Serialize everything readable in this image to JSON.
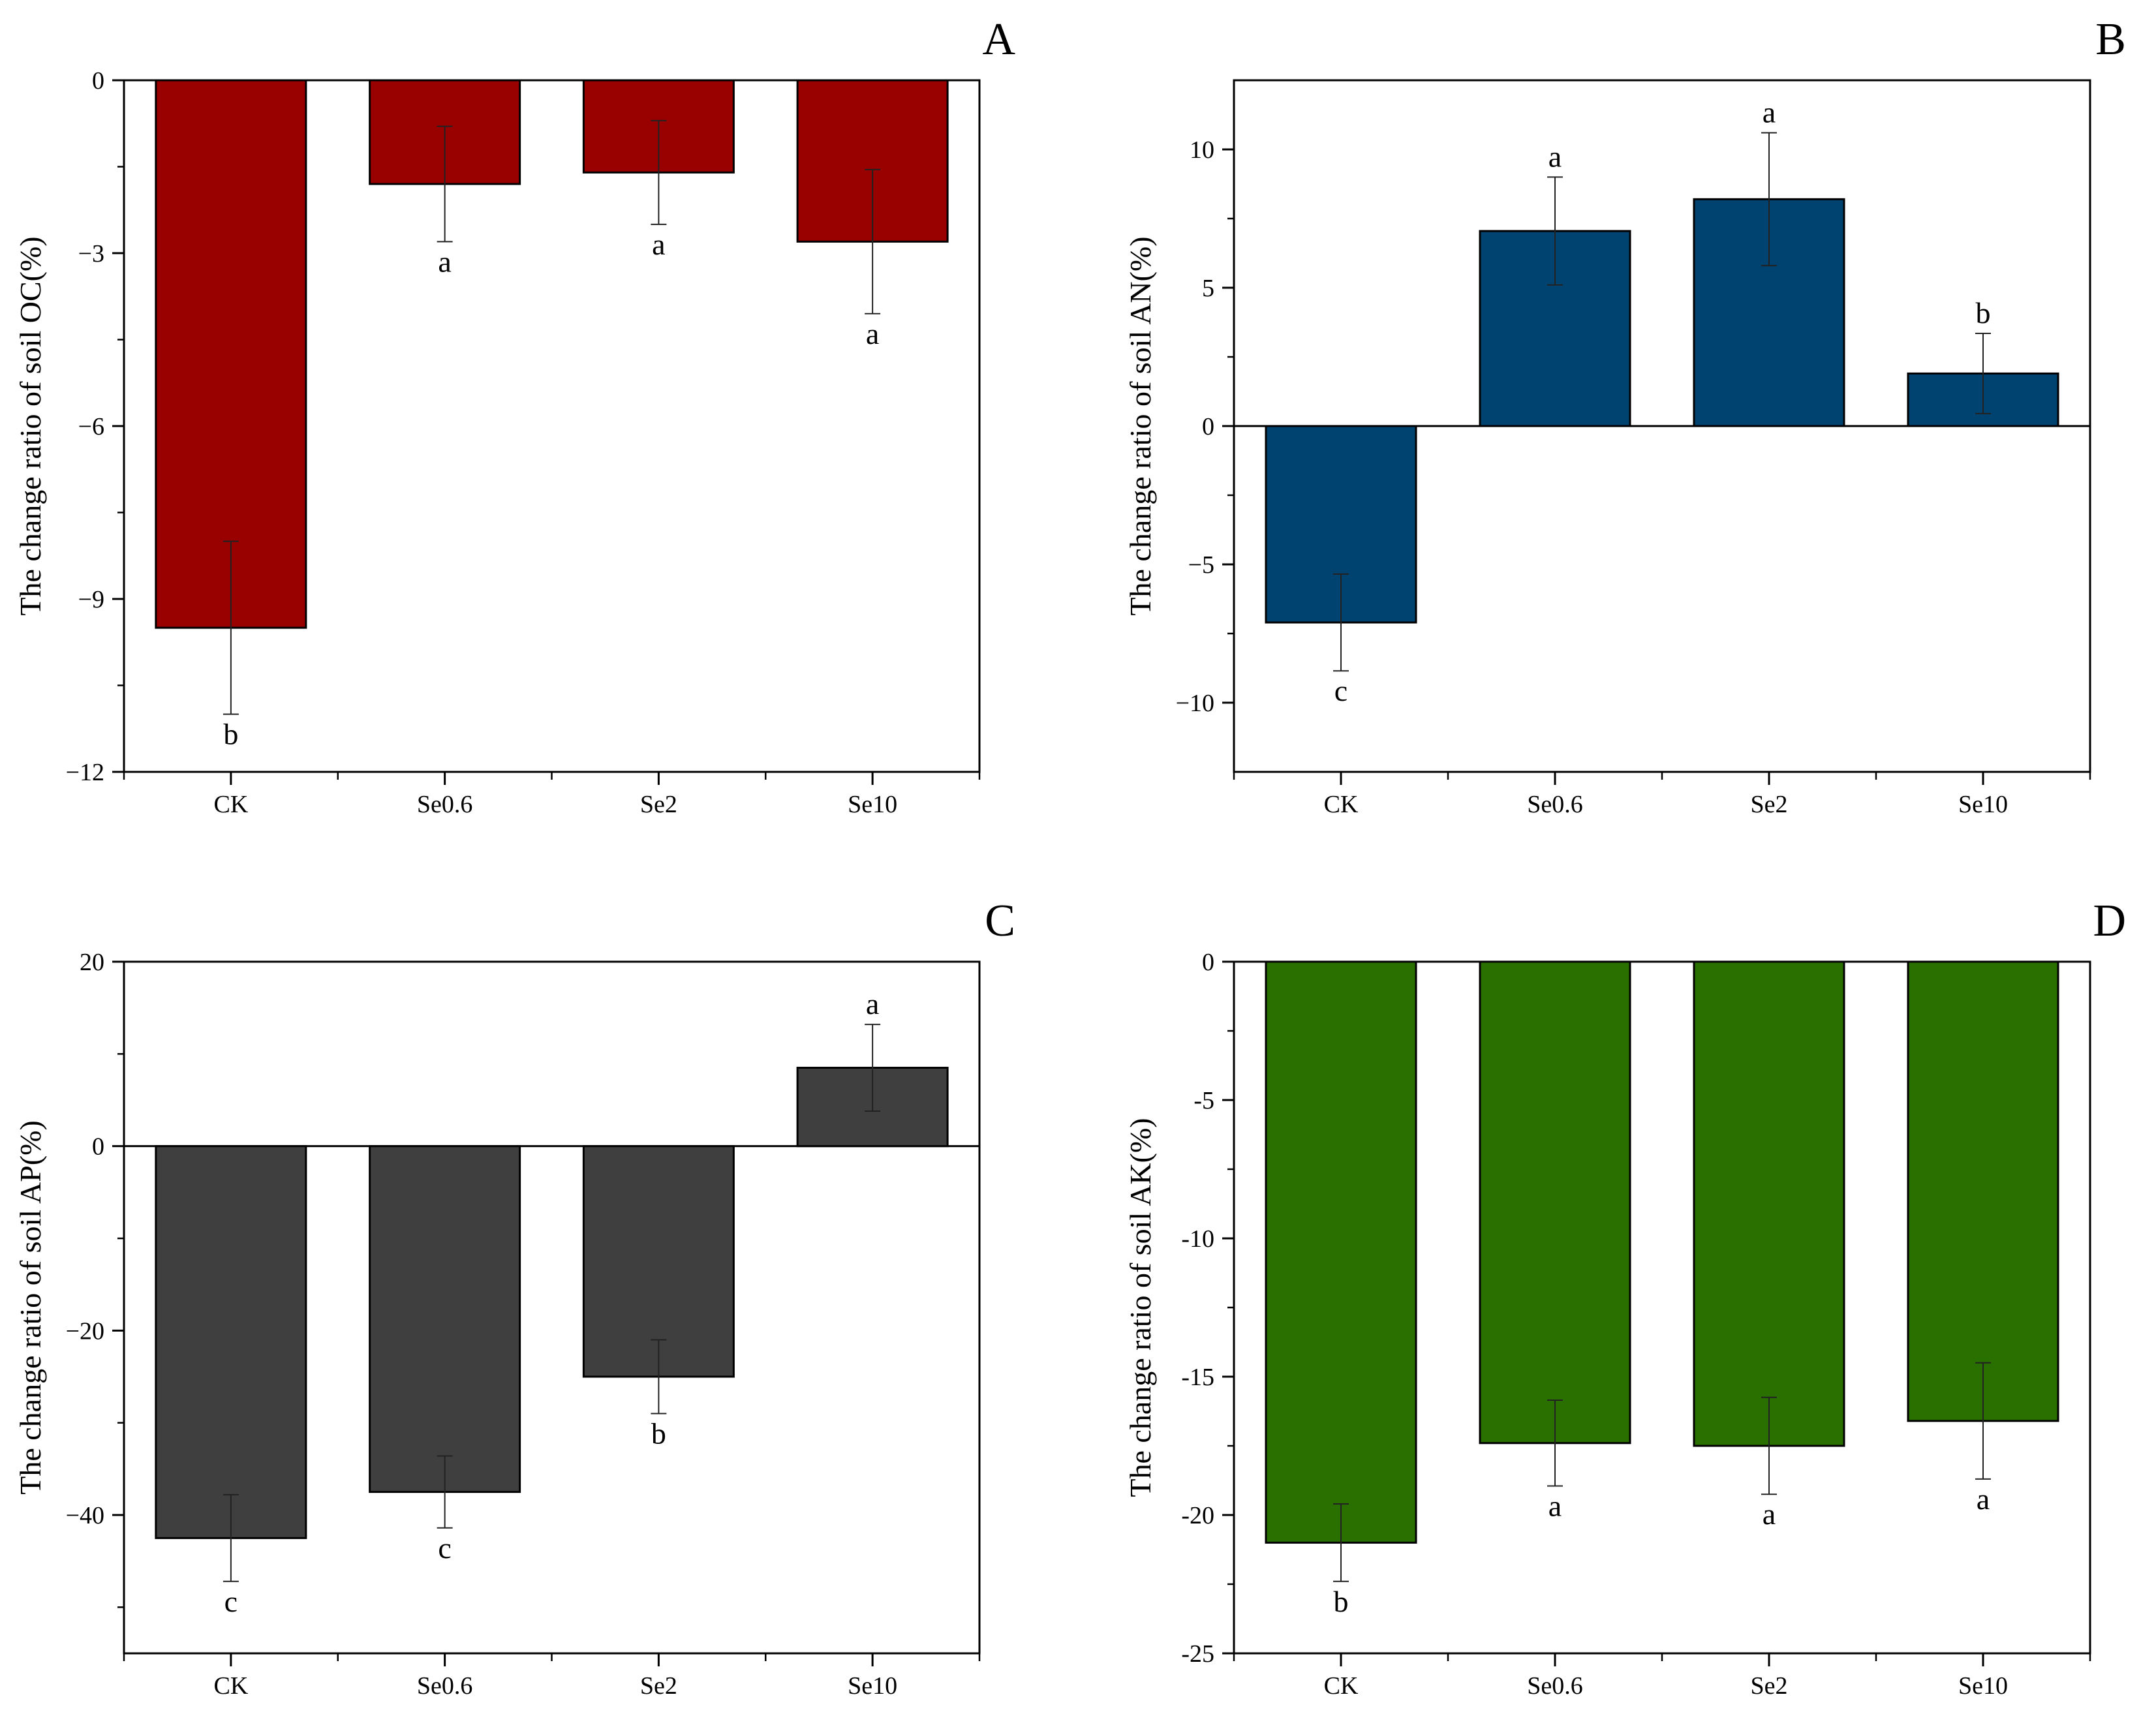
{
  "figure_title": "",
  "chart_data": [
    {
      "panel": "A",
      "type": "bar",
      "title": "",
      "xlabel": "",
      "ylabel": "The change ratio of soil OC(%)",
      "categories": [
        "CK",
        "Se0.6",
        "Se2",
        "Se10"
      ],
      "values": [
        -9.5,
        -1.8,
        -1.6,
        -2.8
      ],
      "errors": [
        1.5,
        1.0,
        0.9,
        1.25
      ],
      "letters": [
        "b",
        "a",
        "a",
        "a"
      ],
      "ylim": [
        -12,
        0
      ],
      "yticks": [
        0,
        -3,
        -6,
        -9,
        -12
      ],
      "ytick_labels": [
        "0",
        "−3",
        "−6",
        "−9",
        "−12"
      ],
      "color": "#990000"
    },
    {
      "panel": "B",
      "type": "bar",
      "title": "",
      "xlabel": "",
      "ylabel": "The change ratio of soil AN(%)",
      "categories": [
        "CK",
        "Se0.6",
        "Se2",
        "Se10"
      ],
      "values": [
        -7.1,
        7.05,
        8.2,
        1.9
      ],
      "errors": [
        1.75,
        1.95,
        2.4,
        1.45
      ],
      "letters": [
        "c",
        "a",
        "a",
        "b"
      ],
      "ylim": [
        -12.5,
        12.5
      ],
      "yticks": [
        10,
        5,
        0,
        -5,
        -10
      ],
      "ytick_labels": [
        "10",
        "5",
        "0",
        "−5",
        "−10"
      ],
      "color": "#004370"
    },
    {
      "panel": "C",
      "type": "bar",
      "title": "",
      "xlabel": "",
      "ylabel": "The change ratio of soil AP(%)",
      "categories": [
        "CK",
        "Se0.6",
        "Se2",
        "Se10"
      ],
      "values": [
        -42.5,
        -37.5,
        -25.0,
        8.5
      ],
      "errors": [
        4.7,
        3.9,
        4.0,
        4.7
      ],
      "letters": [
        "c",
        "c",
        "b",
        "a"
      ],
      "ylim": [
        -55,
        20
      ],
      "yticks": [
        20,
        0,
        -20,
        -40
      ],
      "ytick_labels": [
        "20",
        "0",
        "−20",
        "−40"
      ],
      "color": "#3f3f3f"
    },
    {
      "panel": "D",
      "type": "bar",
      "title": "",
      "xlabel": "",
      "ylabel": "The change ratio of soil AK(%)",
      "categories": [
        "CK",
        "Se0.6",
        "Se2",
        "Se10"
      ],
      "values": [
        -21.0,
        -17.4,
        -17.5,
        -16.6
      ],
      "errors": [
        1.4,
        1.55,
        1.75,
        2.1
      ],
      "letters": [
        "b",
        "a",
        "a",
        "a"
      ],
      "ylim": [
        -25,
        0
      ],
      "yticks": [
        0,
        -5,
        -10,
        -15,
        -20,
        -25
      ],
      "ytick_labels": [
        "0",
        "-5",
        "-10",
        "-15",
        "-20",
        "-25"
      ],
      "color": "#2a7000"
    }
  ]
}
